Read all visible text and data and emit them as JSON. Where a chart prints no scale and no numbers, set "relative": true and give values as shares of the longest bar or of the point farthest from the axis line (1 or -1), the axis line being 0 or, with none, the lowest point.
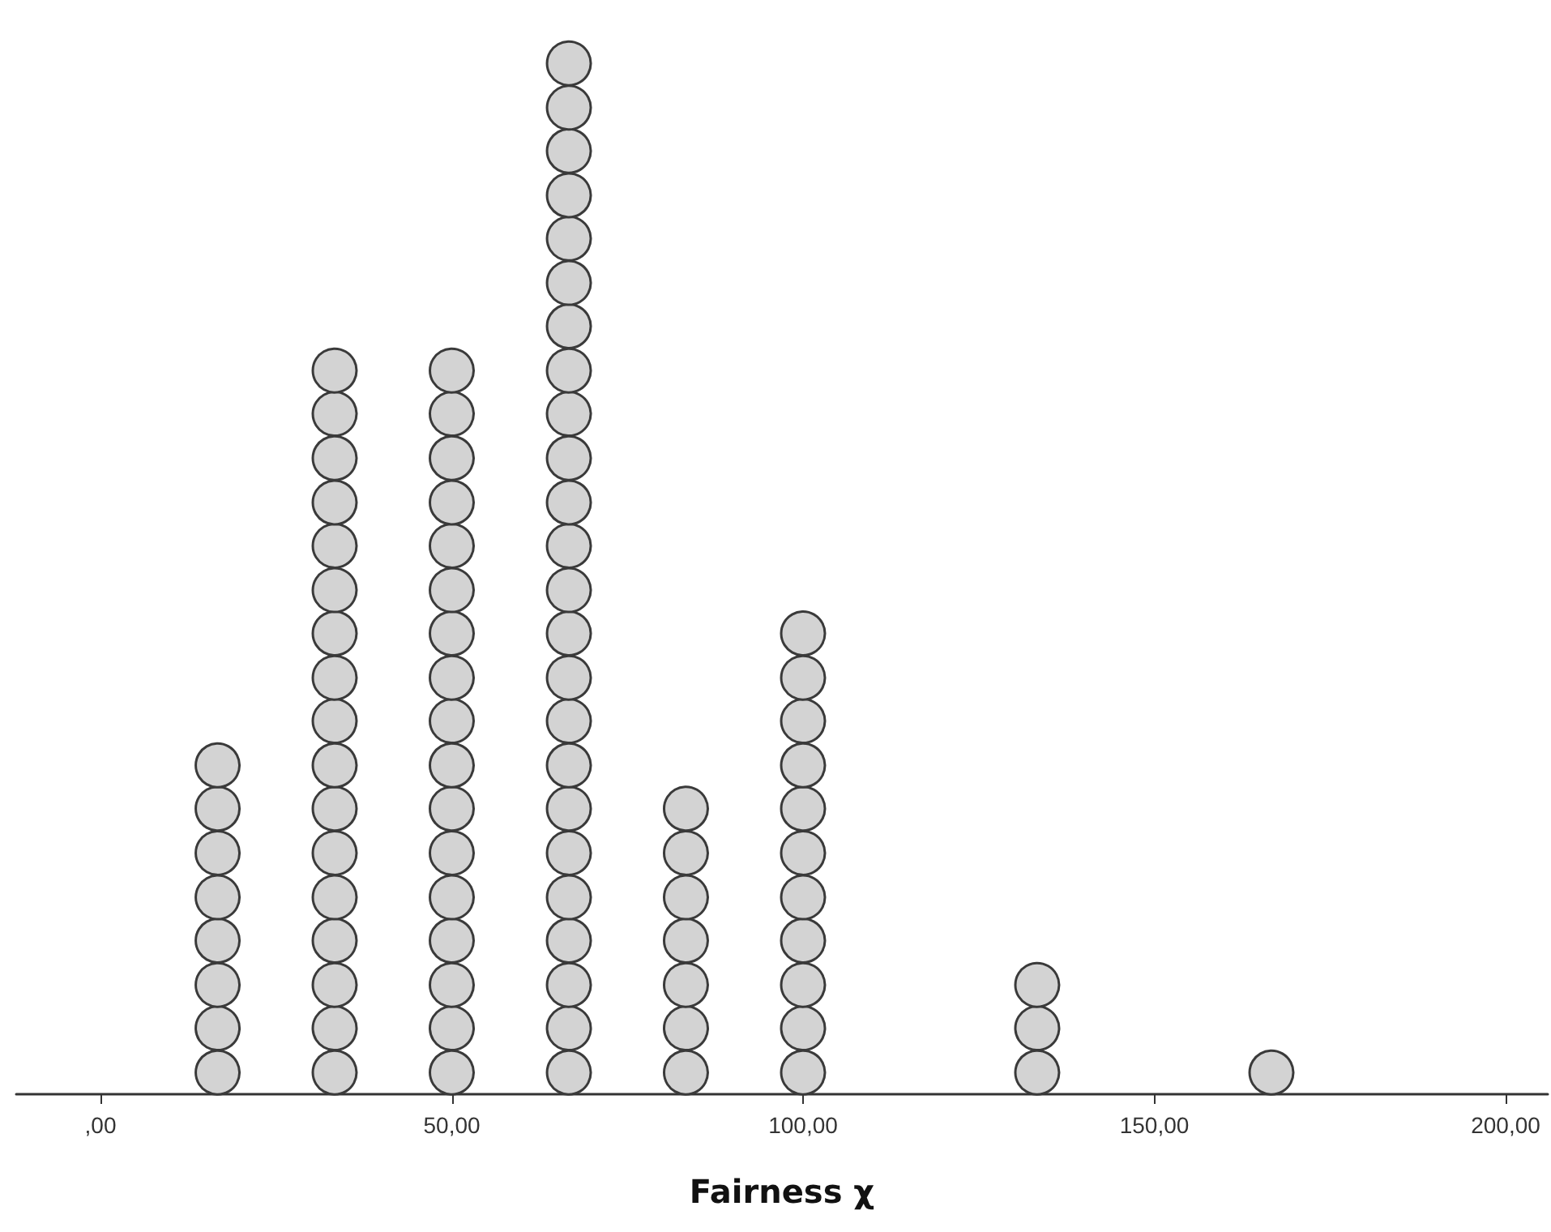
{
  "chart_data": {
    "type": "scatter",
    "xlabel": "Fairness χ",
    "relative": true,
    "marker": "circle",
    "xlim": [
      -12,
      206
    ],
    "xticks": [
      {
        "value": 0,
        "label": ",00"
      },
      {
        "value": 50,
        "label": "50,00"
      },
      {
        "value": 100,
        "label": "100,00"
      },
      {
        "value": 150,
        "label": "150,00"
      },
      {
        "value": 200,
        "label": "200,00"
      }
    ],
    "series": [
      {
        "color": "#d3d3d3",
        "x": [
          16.67,
          16.67,
          16.67,
          16.67,
          16.67,
          16.67,
          16.67,
          16.67
        ],
        "values": [
          0.021,
          0.064,
          0.106,
          0.149,
          0.191,
          0.234,
          0.277,
          0.319
        ]
      },
      {
        "color": "#d3d3d3",
        "x": [
          33.33,
          33.33,
          33.33,
          33.33,
          33.33,
          33.33,
          33.33,
          33.33,
          33.33,
          33.33,
          33.33,
          33.33,
          33.33,
          33.33,
          33.33,
          33.33,
          33.33
        ],
        "values": [
          0.021,
          0.064,
          0.106,
          0.149,
          0.191,
          0.234,
          0.277,
          0.319,
          0.362,
          0.404,
          0.447,
          0.489,
          0.532,
          0.574,
          0.617,
          0.66,
          0.702
        ]
      },
      {
        "color": "#d3d3d3",
        "x": [
          50,
          50,
          50,
          50,
          50,
          50,
          50,
          50,
          50,
          50,
          50,
          50,
          50,
          50,
          50,
          50,
          50
        ],
        "values": [
          0.021,
          0.064,
          0.106,
          0.149,
          0.191,
          0.234,
          0.277,
          0.319,
          0.362,
          0.404,
          0.447,
          0.489,
          0.532,
          0.574,
          0.617,
          0.66,
          0.702
        ]
      },
      {
        "color": "#d3d3d3",
        "x": [
          66.67,
          66.67,
          66.67,
          66.67,
          66.67,
          66.67,
          66.67,
          66.67,
          66.67,
          66.67,
          66.67,
          66.67,
          66.67,
          66.67,
          66.67,
          66.67,
          66.67,
          66.67,
          66.67,
          66.67,
          66.67,
          66.67,
          66.67,
          66.67
        ],
        "values": [
          0.021,
          0.064,
          0.106,
          0.149,
          0.191,
          0.234,
          0.277,
          0.319,
          0.362,
          0.404,
          0.447,
          0.489,
          0.532,
          0.574,
          0.617,
          0.66,
          0.702,
          0.745,
          0.787,
          0.83,
          0.872,
          0.915,
          0.957,
          1
        ]
      },
      {
        "color": "#d3d3d3",
        "x": [
          83.33,
          83.33,
          83.33,
          83.33,
          83.33,
          83.33,
          83.33
        ],
        "values": [
          0.021,
          0.064,
          0.106,
          0.149,
          0.191,
          0.234,
          0.277
        ]
      },
      {
        "color": "#d3d3d3",
        "x": [
          100,
          100,
          100,
          100,
          100,
          100,
          100,
          100,
          100,
          100,
          100
        ],
        "values": [
          0.021,
          0.064,
          0.106,
          0.149,
          0.191,
          0.234,
          0.277,
          0.319,
          0.362,
          0.404,
          0.447
        ]
      },
      {
        "color": "#d3d3d3",
        "x": [
          133.33,
          133.33,
          133.33
        ],
        "values": [
          0.021,
          0.064,
          0.106
        ]
      },
      {
        "color": "#d3d3d3",
        "x": [
          166.67
        ],
        "values": [
          0.021
        ]
      }
    ]
  }
}
